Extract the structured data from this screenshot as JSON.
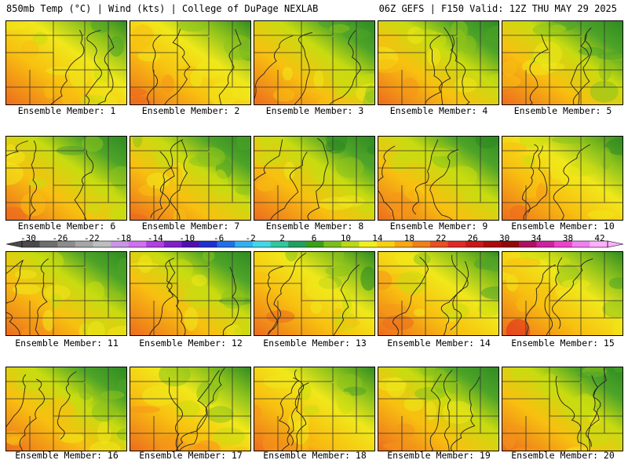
{
  "header": {
    "left": "850mb Temp (°C) | Wind (kts) | College of DuPage NEXLAB",
    "right": "06Z GEFS | F150 Valid: 12Z THU MAY 29 2025"
  },
  "panels": [
    {
      "label": "Ensemble Member: 1",
      "warmth": 0.5,
      "seed": 11
    },
    {
      "label": "Ensemble Member: 2",
      "warmth": 0.55,
      "seed": 23
    },
    {
      "label": "Ensemble Member: 3",
      "warmth": 0.4,
      "seed": 37
    },
    {
      "label": "Ensemble Member: 4",
      "warmth": 0.45,
      "seed": 41
    },
    {
      "label": "Ensemble Member: 5",
      "warmth": 0.35,
      "seed": 53
    },
    {
      "label": "Ensemble Member: 6",
      "warmth": 0.4,
      "seed": 67
    },
    {
      "label": "Ensemble Member: 7",
      "warmth": 0.45,
      "seed": 71
    },
    {
      "label": "Ensemble Member: 8",
      "warmth": 0.3,
      "seed": 83
    },
    {
      "label": "Ensemble Member: 9",
      "warmth": 0.45,
      "seed": 97
    },
    {
      "label": "Ensemble Member: 10",
      "warmth": 0.65,
      "seed": 101
    },
    {
      "label": "Ensemble Member: 11",
      "warmth": 0.45,
      "seed": 113
    },
    {
      "label": "Ensemble Member: 12",
      "warmth": 0.4,
      "seed": 127
    },
    {
      "label": "Ensemble Member: 13",
      "warmth": 0.55,
      "seed": 131
    },
    {
      "label": "Ensemble Member: 14",
      "warmth": 0.6,
      "seed": 149
    },
    {
      "label": "Ensemble Member: 15",
      "warmth": 0.65,
      "seed": 151
    },
    {
      "label": "Ensemble Member: 16",
      "warmth": 0.45,
      "seed": 163
    },
    {
      "label": "Ensemble Member: 17",
      "warmth": 0.55,
      "seed": 173
    },
    {
      "label": "Ensemble Member: 18",
      "warmth": 0.5,
      "seed": 181
    },
    {
      "label": "Ensemble Member: 19",
      "warmth": 0.45,
      "seed": 191
    },
    {
      "label": "Ensemble Member: 20",
      "warmth": 0.4,
      "seed": 199
    }
  ],
  "colorbar": {
    "ticks": [
      "-30",
      "-26",
      "-22",
      "-18",
      "-14",
      "-10",
      "-6",
      "-2",
      "2",
      "6",
      "10",
      "14",
      "18",
      "22",
      "26",
      "30",
      "34",
      "38",
      "42"
    ],
    "colors": [
      "#4a4a4a",
      "#6e6e6e",
      "#8c8c8c",
      "#a6a6a6",
      "#bebebe",
      "#c896e6",
      "#d070f0",
      "#b040e0",
      "#8020c8",
      "#5010b0",
      "#2030d0",
      "#2070e8",
      "#30b0f0",
      "#40d8e8",
      "#30c8a0",
      "#20a060",
      "#3aa018",
      "#7ac01a",
      "#b8d818",
      "#f0f020",
      "#f8d010",
      "#f8a810",
      "#f08018",
      "#e85020",
      "#e02828",
      "#c81818",
      "#a80c0c",
      "#900808",
      "#b01060",
      "#d020a0",
      "#f040d0",
      "#f080f0",
      "#ffb0ff"
    ]
  },
  "palette": {
    "green_dark": "#2e8b22",
    "green": "#4ea428",
    "green_light": "#8cc21c",
    "yellow_green": "#c8dc10",
    "yellow": "#f0e81a",
    "gold": "#f8c010",
    "orange": "#f5961a",
    "orange_dark": "#ec6a1e",
    "red": "#e0281e"
  }
}
